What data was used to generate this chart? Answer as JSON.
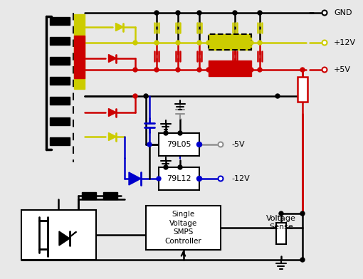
{
  "bg_color": "#e8e8e8",
  "colors": {
    "black": "#000000",
    "red": "#cc0000",
    "yellow": "#cccc00",
    "blue": "#0000cc",
    "gray": "#909090",
    "white": "#ffffff",
    "dark_yellow": "#aaaa00"
  },
  "labels": {
    "gnd": "GND",
    "p12v": "+12V",
    "p5v": "+5V",
    "n5v": "-5V",
    "n12v": "-12V",
    "ic1": "79L05",
    "ic2": "79L12",
    "controller": "Single\nVoltage\nSMPS\nController",
    "voltage_sense": "Voltage\nSense"
  },
  "lw": 1.8
}
